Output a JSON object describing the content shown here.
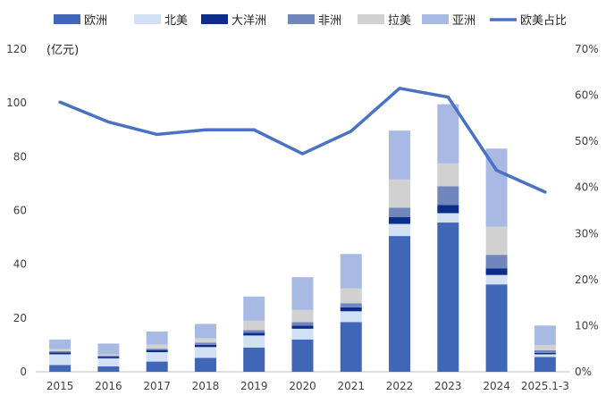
{
  "chart_data": {
    "type": "bar",
    "stacked": true,
    "unit_label": "(亿元)",
    "categories": [
      "2015",
      "2016",
      "2017",
      "2018",
      "2019",
      "2020",
      "2021",
      "2022",
      "2023",
      "2024",
      "2025.1-3"
    ],
    "ylim_left": [
      0,
      120
    ],
    "yticks_left": [
      0,
      20,
      40,
      60,
      80,
      100,
      120
    ],
    "ylim_right": [
      0,
      70
    ],
    "yticks_right": [
      "0%",
      "10%",
      "20%",
      "30%",
      "40%",
      "50%",
      "60%",
      "70%"
    ],
    "series": [
      {
        "name": "欧洲",
        "color": "#4066b8",
        "values": [
          2.5,
          2.0,
          3.8,
          5.2,
          9.0,
          12.0,
          18.5,
          50.5,
          55.5,
          32.5,
          5.5
        ]
      },
      {
        "name": "北美",
        "color": "#d2e0f4",
        "values": [
          4.0,
          3.0,
          3.5,
          4.0,
          4.5,
          4.0,
          4.0,
          4.5,
          3.5,
          3.5,
          1.0
        ]
      },
      {
        "name": "大洋洲",
        "color": "#0d2d8a",
        "values": [
          0.7,
          0.6,
          0.8,
          0.8,
          1.0,
          1.2,
          1.5,
          2.5,
          3.0,
          2.5,
          0.5
        ]
      },
      {
        "name": "非洲",
        "color": "#7086bd",
        "values": [
          0.5,
          0.4,
          0.5,
          0.8,
          1.0,
          1.3,
          1.5,
          3.5,
          7.0,
          5.0,
          1.0
        ]
      },
      {
        "name": "拉美",
        "color": "#d2d1d2",
        "values": [
          0.8,
          0.5,
          1.5,
          1.7,
          3.5,
          4.5,
          5.5,
          10.5,
          8.5,
          10.5,
          2.0
        ]
      },
      {
        "name": "亚洲",
        "color": "#a8b9e3",
        "values": [
          3.5,
          4.0,
          4.9,
          5.3,
          9.0,
          12.2,
          12.8,
          18.2,
          22.0,
          29.0,
          7.2
        ]
      }
    ],
    "line": {
      "name": "欧美占比",
      "color": "#4a72c4",
      "axis": "right",
      "values": [
        58.5,
        54.2,
        51.5,
        52.5,
        52.5,
        47.3,
        52.2,
        61.5,
        59.6,
        43.7,
        39.0
      ]
    }
  }
}
